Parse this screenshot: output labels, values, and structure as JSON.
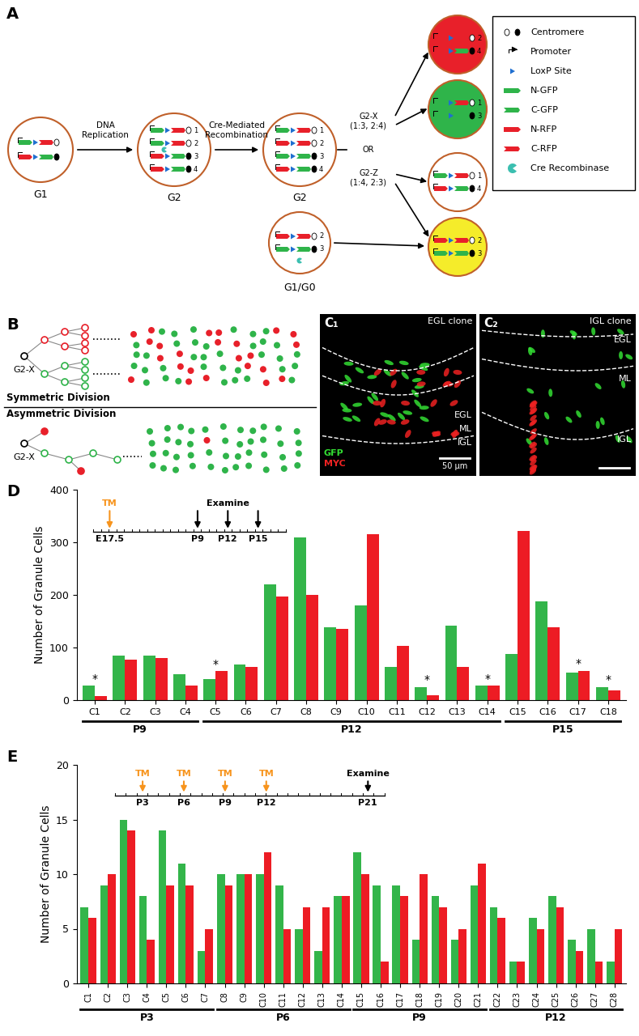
{
  "panel_A": {
    "label": "A",
    "stages": {
      "g1": "G1",
      "g2": "G2",
      "g1_g0": "G1/G0"
    },
    "steps": [
      "DNA\nReplication",
      "Cre-Mediated\nRecombination"
    ],
    "branches": {
      "x": "G2-X\n(1:3, 2:4)",
      "or": "OR",
      "z": "G2-Z\n(1:4, 2:3)"
    },
    "g2_chromosomes": [
      1,
      2,
      3,
      4
    ],
    "daughter_cells": [
      {
        "chromosomes": [
          2,
          4
        ],
        "color": "#e8202a"
      },
      {
        "chromosomes": [
          1,
          3
        ],
        "color": "#2fb44a"
      },
      {
        "chromosomes": [
          1,
          4
        ],
        "color": "#ffffff"
      },
      {
        "chromosomes": [
          2,
          3
        ],
        "color": "#f5ec2a"
      }
    ],
    "g1_g0_chromosomes": [
      2,
      3
    ],
    "key": [
      "Centromere",
      "Promoter",
      "LoxP Site",
      "N-GFP",
      "C-GFP",
      "N-RFP",
      "C-RFP",
      "Cre Recombinase"
    ]
  },
  "panel_B": {
    "label": "B",
    "root_label": "G2-X",
    "modes": [
      "Symmetric Division",
      "Asymmetric Division"
    ]
  },
  "panel_C": {
    "images": [
      {
        "label": "C₁",
        "title": "EGL clone",
        "layers": [
          "EGL",
          "ML",
          "IGL"
        ],
        "channels": [
          {
            "name": "GFP",
            "color": "#33dd33"
          },
          {
            "name": "MYC",
            "color": "#ee2222"
          }
        ],
        "scale_bar": "50 μm"
      },
      {
        "label": "C₂",
        "title": "IGL clone",
        "layers": [
          "EGL",
          "ML",
          "IGL"
        ]
      }
    ]
  },
  "chart_data": [
    {
      "type": "bar",
      "label": "D",
      "ylabel": "Number of Granule Cells",
      "categories": [
        "C1",
        "C2",
        "C3",
        "C4",
        "C5",
        "C6",
        "C7",
        "C8",
        "C9",
        "C10",
        "C11",
        "C12",
        "C13",
        "C14",
        "C15",
        "C16",
        "C17",
        "C18"
      ],
      "series": [
        {
          "color": "#33b54a",
          "values": [
            28,
            85,
            85,
            50,
            40,
            67,
            220,
            310,
            138,
            180,
            63,
            25,
            142,
            27,
            87,
            188,
            53,
            25
          ]
        },
        {
          "color": "#ed1c24",
          "values": [
            7,
            77,
            80,
            27,
            55,
            63,
            197,
            200,
            135,
            315,
            103,
            10,
            63,
            27,
            322,
            138,
            56,
            18
          ]
        }
      ],
      "ylim": [
        0,
        400
      ],
      "yticks": [
        0,
        100,
        200,
        300,
        400
      ],
      "groups": [
        {
          "label": "P9",
          "from": "C1",
          "to": "C4"
        },
        {
          "label": "P12",
          "from": "C5",
          "to": "C14"
        },
        {
          "label": "P15",
          "from": "C15",
          "to": "C18"
        }
      ],
      "annotations": [
        {
          "text": "*",
          "categories": [
            "C1",
            "C5",
            "C12",
            "C14",
            "C17",
            "C18"
          ]
        }
      ],
      "timeline": {
        "treatment": {
          "label": "TM",
          "color": "#f7941d",
          "times": [
            "E17.5"
          ]
        },
        "examine": {
          "label": "Examine",
          "times": [
            "P9",
            "P12",
            "P15"
          ]
        }
      }
    },
    {
      "type": "bar",
      "label": "E",
      "ylabel": "Number of Granule Cells",
      "categories": [
        "C1",
        "C2",
        "C3",
        "C4",
        "C5",
        "C6",
        "C7",
        "C8",
        "C9",
        "C10",
        "C11",
        "C12",
        "C13",
        "C14",
        "C15",
        "C16",
        "C17",
        "C18",
        "C19",
        "C20",
        "C21",
        "C22",
        "C23",
        "C24",
        "C25",
        "C26",
        "C27",
        "C28"
      ],
      "series": [
        {
          "color": "#33b54a",
          "values": [
            7,
            9,
            15,
            8,
            14,
            11,
            3,
            10,
            10,
            10,
            9,
            5,
            3,
            8,
            12,
            9,
            9,
            4,
            8,
            4,
            9,
            7,
            2,
            6,
            8,
            4,
            5,
            2
          ]
        },
        {
          "color": "#ed1c24",
          "values": [
            6,
            10,
            14,
            4,
            9,
            9,
            5,
            9,
            10,
            12,
            5,
            7,
            7,
            8,
            10,
            2,
            8,
            10,
            7,
            5,
            11,
            6,
            2,
            5,
            7,
            3,
            2,
            5
          ]
        }
      ],
      "ylim": [
        0,
        20
      ],
      "yticks": [
        0,
        5,
        10,
        15,
        20
      ],
      "groups": [
        {
          "label": "P3",
          "from": "C1",
          "to": "C7"
        },
        {
          "label": "P6",
          "from": "C8",
          "to": "C14"
        },
        {
          "label": "P9",
          "from": "C15",
          "to": "C21"
        },
        {
          "label": "P12",
          "from": "C22",
          "to": "C28"
        }
      ],
      "timeline": {
        "treatment": {
          "label": "TM",
          "color": "#f7941d",
          "times": [
            "P3",
            "P6",
            "P9",
            "P12"
          ]
        },
        "examine": {
          "label": "Examine",
          "times": [
            "P21"
          ]
        }
      }
    }
  ]
}
